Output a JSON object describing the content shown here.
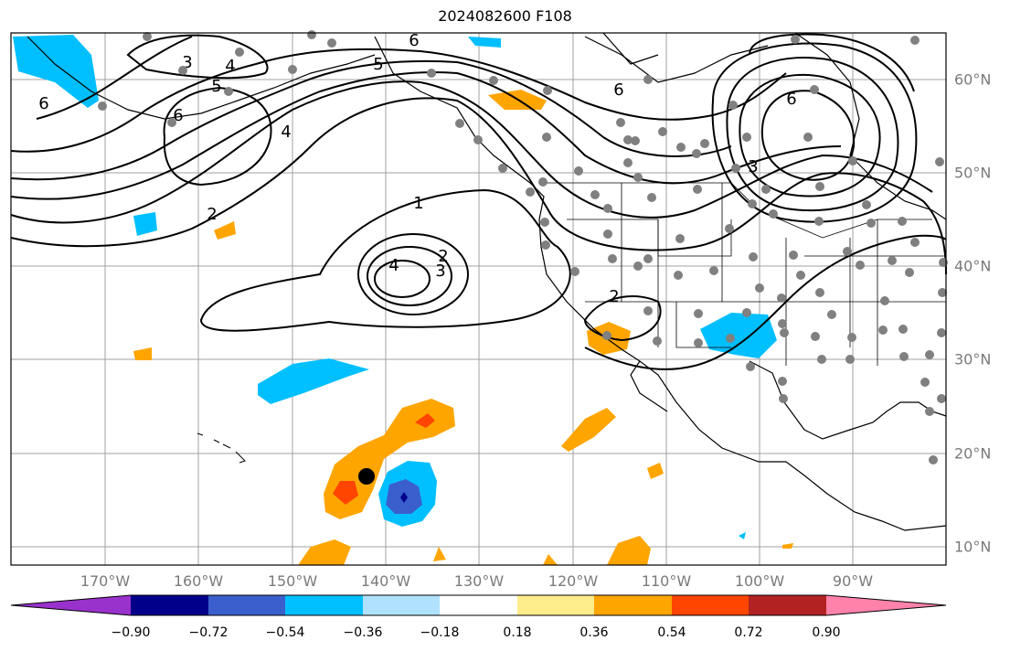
{
  "title": "2024082600 F108",
  "longitude_labels": [
    "170°W",
    "160°W",
    "150°W",
    "140°W",
    "130°W",
    "120°W",
    "110°W",
    "100°W",
    "90°W"
  ],
  "latitude_labels": [
    "60°N",
    "50°N",
    "40°N",
    "30°N",
    "20°N",
    "10°N"
  ],
  "contour_labels": [
    "6",
    "3",
    "4",
    "5",
    "6",
    "4",
    "2",
    "1",
    "4",
    "2",
    "3",
    "5",
    "6",
    "6",
    "3",
    "2",
    "6"
  ],
  "colorbar": {
    "tick_labels": [
      "−0.90",
      "−0.72",
      "−0.54",
      "−0.36",
      "−0.18",
      "0.18",
      "0.36",
      "0.54",
      "0.72",
      "0.90"
    ],
    "colors": [
      "#9932cc",
      "#00008b",
      "#3a5fcd",
      "#00bfff",
      "#b0e2ff",
      "#ffffff",
      "#ffec8b",
      "#ffa500",
      "#ff4500",
      "#b22222",
      "#ff82ab"
    ]
  },
  "colors": {
    "land_outline": "#000000",
    "gridline": "#a0a0a0",
    "station_dot": "#808080",
    "contour": "#000000",
    "positive_anomaly": "#ffa500",
    "negative_anomaly": "#00bfff"
  },
  "marker": "storm-position-dot"
}
